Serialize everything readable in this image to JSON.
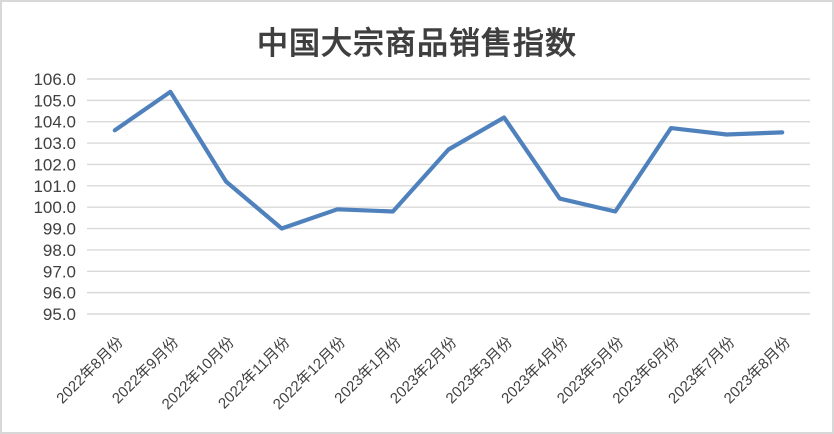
{
  "chart_data": {
    "type": "line",
    "title": "中国大宗商品销售指数",
    "categories": [
      "2022年8月份",
      "2022年9月份",
      "2022年10月份",
      "2022年11月份",
      "2022年12月份",
      "2023年1月份",
      "2023年2月份",
      "2023年3月份",
      "2023年4月份",
      "2023年5月份",
      "2023年6月份",
      "2023年7月份",
      "2023年8月份"
    ],
    "values": [
      103.6,
      105.4,
      101.2,
      99.0,
      99.9,
      99.8,
      102.7,
      104.2,
      100.4,
      99.8,
      103.7,
      103.4,
      103.5
    ],
    "ylim": [
      95.0,
      106.0
    ],
    "ytick_labels": [
      "106.0",
      "105.0",
      "104.0",
      "103.0",
      "102.0",
      "101.0",
      "100.0",
      "99.0",
      "98.0",
      "97.0",
      "96.0",
      "95.0"
    ],
    "grid": true,
    "legend": false,
    "xlabel": "",
    "ylabel": ""
  },
  "colors": {
    "line": "#4f81bd",
    "gridline": "#d9d9d9",
    "axis_text": "#404040",
    "title_text": "#3f3f3f",
    "frame_border": "#d8d8d8",
    "background": "#ffffff"
  }
}
